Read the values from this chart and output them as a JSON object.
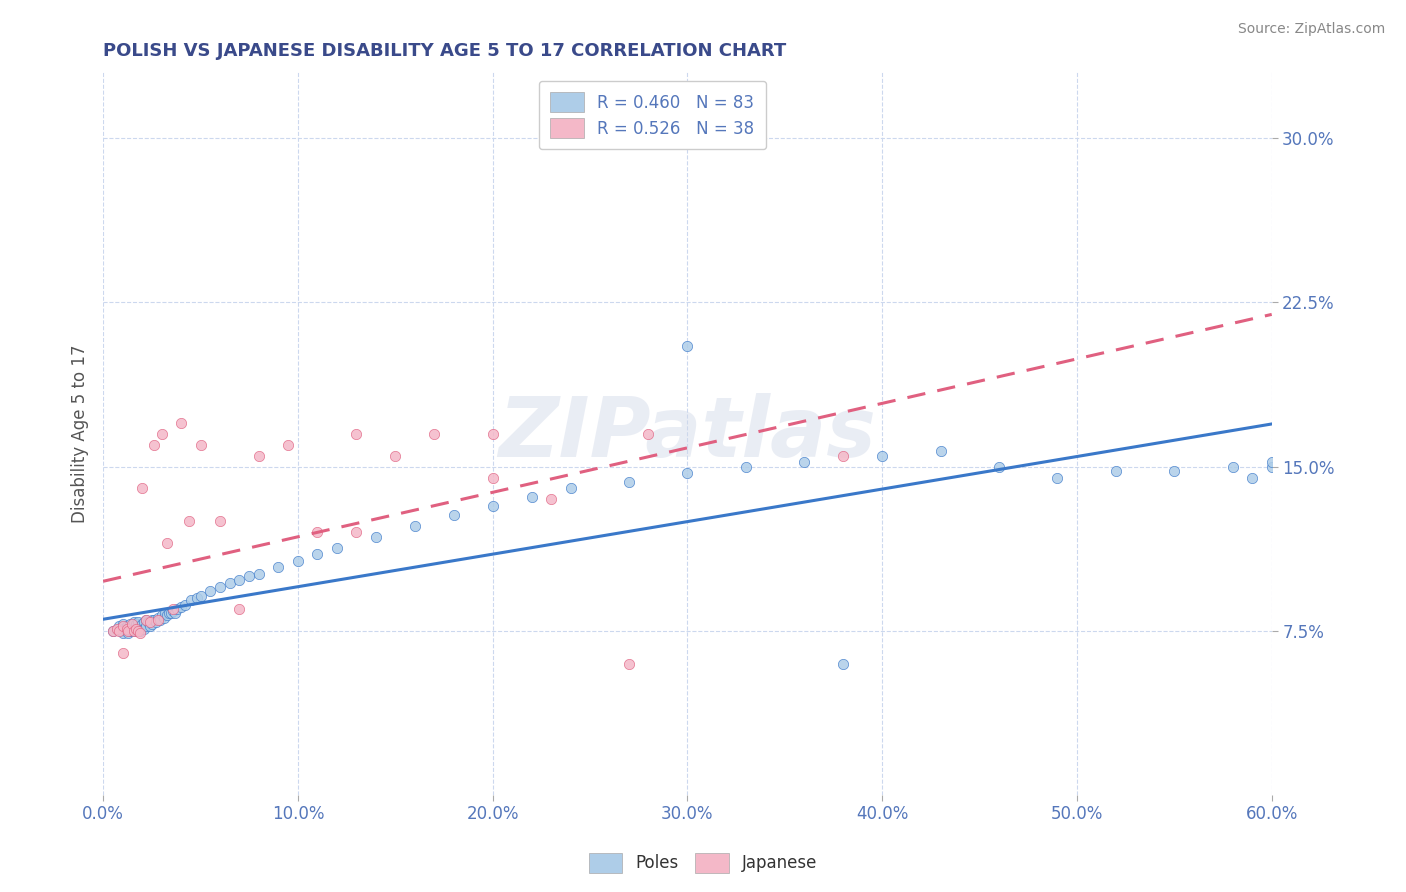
{
  "title": "POLISH VS JAPANESE DISABILITY AGE 5 TO 17 CORRELATION CHART",
  "source_text": "Source: ZipAtlas.com",
  "ylabel": "Disability Age 5 to 17",
  "xlim": [
    0.0,
    0.6
  ],
  "ylim": [
    0.0,
    0.33
  ],
  "yticks": [
    0.075,
    0.15,
    0.225,
    0.3
  ],
  "ytick_labels": [
    "7.5%",
    "15.0%",
    "22.5%",
    "30.0%"
  ],
  "xticks": [
    0.0,
    0.1,
    0.2,
    0.3,
    0.4,
    0.5,
    0.6
  ],
  "xtick_labels": [
    "0.0%",
    "10.0%",
    "20.0%",
    "30.0%",
    "40.0%",
    "50.0%",
    "60.0%"
  ],
  "poles_color": "#aecde8",
  "japanese_color": "#f4b8c8",
  "trend_poles_color": "#3a78c9",
  "trend_japanese_color": "#e06080",
  "legend_label_poles": "R = 0.460   N = 83",
  "legend_label_japanese": "R = 0.526   N = 38",
  "legend_label_poles_bottom": "Poles",
  "legend_label_japanese_bottom": "Japanese",
  "poles_x": [
    0.005,
    0.007,
    0.008,
    0.009,
    0.01,
    0.01,
    0.01,
    0.012,
    0.012,
    0.013,
    0.013,
    0.014,
    0.014,
    0.015,
    0.015,
    0.016,
    0.016,
    0.017,
    0.017,
    0.018,
    0.018,
    0.019,
    0.019,
    0.02,
    0.02,
    0.021,
    0.021,
    0.022,
    0.022,
    0.023,
    0.024,
    0.025,
    0.025,
    0.026,
    0.027,
    0.028,
    0.029,
    0.03,
    0.031,
    0.032,
    0.033,
    0.034,
    0.035,
    0.036,
    0.037,
    0.038,
    0.04,
    0.042,
    0.045,
    0.048,
    0.05,
    0.055,
    0.06,
    0.065,
    0.07,
    0.075,
    0.08,
    0.09,
    0.1,
    0.11,
    0.12,
    0.14,
    0.16,
    0.18,
    0.2,
    0.22,
    0.24,
    0.27,
    0.3,
    0.33,
    0.36,
    0.4,
    0.43,
    0.46,
    0.49,
    0.52,
    0.55,
    0.58,
    0.59,
    0.6,
    0.6,
    0.3,
    0.38
  ],
  "poles_y": [
    0.075,
    0.076,
    0.077,
    0.075,
    0.078,
    0.076,
    0.074,
    0.077,
    0.075,
    0.076,
    0.074,
    0.078,
    0.075,
    0.077,
    0.075,
    0.079,
    0.076,
    0.078,
    0.075,
    0.079,
    0.076,
    0.077,
    0.075,
    0.078,
    0.076,
    0.079,
    0.076,
    0.08,
    0.077,
    0.079,
    0.077,
    0.08,
    0.078,
    0.08,
    0.079,
    0.081,
    0.08,
    0.082,
    0.081,
    0.083,
    0.082,
    0.083,
    0.083,
    0.084,
    0.083,
    0.085,
    0.086,
    0.087,
    0.089,
    0.09,
    0.091,
    0.093,
    0.095,
    0.097,
    0.098,
    0.1,
    0.101,
    0.104,
    0.107,
    0.11,
    0.113,
    0.118,
    0.123,
    0.128,
    0.132,
    0.136,
    0.14,
    0.143,
    0.147,
    0.15,
    0.152,
    0.155,
    0.157,
    0.15,
    0.145,
    0.148,
    0.148,
    0.15,
    0.145,
    0.15,
    0.152,
    0.205,
    0.06
  ],
  "japanese_x": [
    0.005,
    0.007,
    0.008,
    0.01,
    0.01,
    0.012,
    0.013,
    0.015,
    0.016,
    0.017,
    0.018,
    0.019,
    0.02,
    0.022,
    0.024,
    0.026,
    0.028,
    0.03,
    0.033,
    0.036,
    0.04,
    0.044,
    0.05,
    0.06,
    0.07,
    0.08,
    0.095,
    0.11,
    0.13,
    0.15,
    0.17,
    0.2,
    0.23,
    0.27,
    0.13,
    0.2,
    0.28,
    0.38
  ],
  "japanese_y": [
    0.075,
    0.076,
    0.075,
    0.077,
    0.065,
    0.076,
    0.075,
    0.078,
    0.075,
    0.076,
    0.075,
    0.074,
    0.14,
    0.08,
    0.079,
    0.16,
    0.08,
    0.165,
    0.115,
    0.085,
    0.17,
    0.125,
    0.16,
    0.125,
    0.085,
    0.155,
    0.16,
    0.12,
    0.165,
    0.155,
    0.165,
    0.145,
    0.135,
    0.06,
    0.12,
    0.165,
    0.165,
    0.155
  ],
  "title_color": "#3a4a8a",
  "tick_color": "#5577bb",
  "ylabel_color": "#555555",
  "watermark_text": "ZIPatlas",
  "grid_color": "#ccd8ee",
  "background_color": "#ffffff"
}
